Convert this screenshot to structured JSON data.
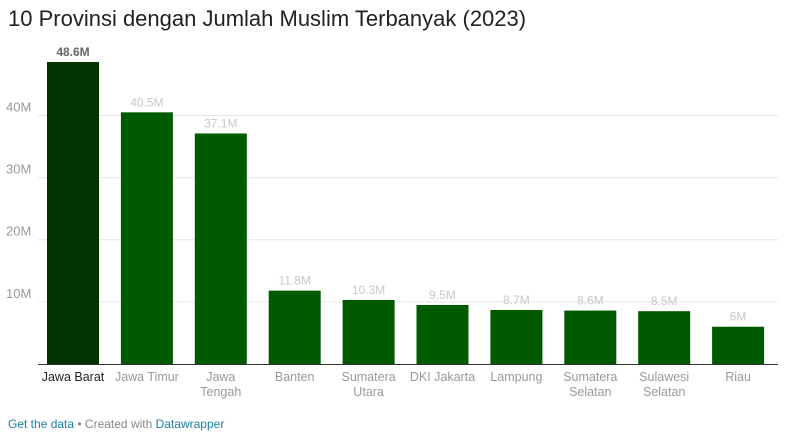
{
  "title": "10 Provinsi dengan Jumlah Muslim Terbanyak (2023)",
  "footer": {
    "get_data": "Get the data",
    "separator": " • Created with ",
    "brand": "Datawrapper"
  },
  "colors": {
    "highlight": "#003300",
    "bar": "#005a00",
    "grid": "#e6e6e6",
    "baseline": "#333333",
    "tick_label": "#999999",
    "value_label_highlight": "#666666",
    "value_label": "#c8c8c8",
    "category_highlight": "#222222",
    "category": "#999999"
  },
  "chart_data": {
    "type": "bar",
    "categories": [
      [
        "Jawa Barat"
      ],
      [
        "Jawa Timur"
      ],
      [
        "Jawa",
        "Tengah"
      ],
      [
        "Banten"
      ],
      [
        "Sumatera",
        "Utara"
      ],
      [
        "DKI Jakarta"
      ],
      [
        "Lampung"
      ],
      [
        "Sumatera",
        "Selatan"
      ],
      [
        "Sulawesi",
        "Selatan"
      ],
      [
        "Riau"
      ]
    ],
    "values": [
      48.6,
      40.5,
      37.1,
      11.8,
      10.3,
      9.5,
      8.7,
      8.6,
      8.5,
      6
    ],
    "value_labels": [
      "48.6M",
      "40.5M",
      "37.1M",
      "11.8M",
      "10.3M",
      "9.5M",
      "8.7M",
      "8.6M",
      "8.5M",
      "6M"
    ],
    "highlight_index": 0,
    "yticks": [
      10,
      20,
      30,
      40
    ],
    "ytick_labels": [
      "10M",
      "20M",
      "30M",
      "40M"
    ],
    "ylim": [
      0,
      48.6
    ],
    "grid": true,
    "legend": "none"
  }
}
